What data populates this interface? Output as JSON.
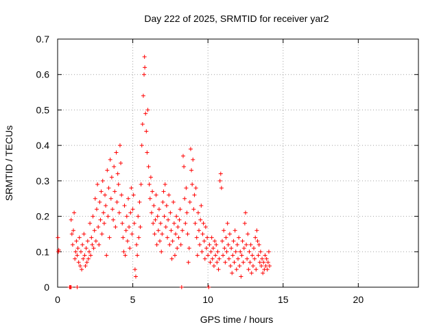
{
  "chart_data": {
    "type": "scatter",
    "title": "Day 222 of 2025, SRMTID for receiver yar2",
    "xlabel": "GPS time / hours",
    "ylabel": "SRMTID / TECUs",
    "xlim": [
      0,
      24
    ],
    "ylim": [
      0,
      0.7
    ],
    "xticks": [
      0,
      5,
      10,
      15,
      20
    ],
    "xtick_labels": [
      "0",
      "5",
      "10",
      "15",
      "20"
    ],
    "yticks": [
      0,
      0.1,
      0.2,
      0.3,
      0.4,
      0.5,
      0.6,
      0.7
    ],
    "ytick_labels": [
      "0",
      "0.1",
      "0.2",
      "0.3",
      "0.4",
      "0.5",
      "0.6",
      "0.7"
    ],
    "grid": true,
    "marker": "plus",
    "series": [
      {
        "name": "SRMTID",
        "color": "#ff0000",
        "points": [
          [
            0.02,
            0.14
          ],
          [
            0.05,
            0.1
          ],
          [
            0.08,
            0.105
          ],
          [
            0.8,
            0.0
          ],
          [
            0.85,
            0.0
          ],
          [
            0.9,
            0.0
          ],
          [
            1.3,
            0.0
          ],
          [
            0.9,
            0.19
          ],
          [
            0.95,
            0.15
          ],
          [
            1.0,
            0.12
          ],
          [
            1.05,
            0.16
          ],
          [
            1.1,
            0.21
          ],
          [
            1.15,
            0.08
          ],
          [
            1.2,
            0.1
          ],
          [
            1.25,
            0.13
          ],
          [
            1.3,
            0.09
          ],
          [
            1.35,
            0.11
          ],
          [
            1.4,
            0.07
          ],
          [
            1.45,
            0.14
          ],
          [
            1.5,
            0.06
          ],
          [
            1.55,
            0.1
          ],
          [
            1.6,
            0.05
          ],
          [
            1.65,
            0.12
          ],
          [
            1.7,
            0.08
          ],
          [
            1.75,
            0.15
          ],
          [
            1.8,
            0.09
          ],
          [
            1.85,
            0.06
          ],
          [
            1.9,
            0.11
          ],
          [
            1.95,
            0.07
          ],
          [
            2.0,
            0.13
          ],
          [
            2.05,
            0.08
          ],
          [
            2.1,
            0.1
          ],
          [
            2.15,
            0.18
          ],
          [
            2.2,
            0.09
          ],
          [
            2.25,
            0.14
          ],
          [
            2.3,
            0.12
          ],
          [
            2.35,
            0.2
          ],
          [
            2.4,
            0.11
          ],
          [
            2.45,
            0.16
          ],
          [
            2.5,
            0.25
          ],
          [
            2.55,
            0.13
          ],
          [
            2.6,
            0.22
          ],
          [
            2.65,
            0.29
          ],
          [
            2.7,
            0.17
          ],
          [
            2.75,
            0.12
          ],
          [
            2.8,
            0.24
          ],
          [
            2.85,
            0.19
          ],
          [
            2.9,
            0.27
          ],
          [
            2.95,
            0.15
          ],
          [
            3.0,
            0.3
          ],
          [
            3.05,
            0.21
          ],
          [
            3.1,
            0.18
          ],
          [
            3.15,
            0.26
          ],
          [
            3.2,
            0.23
          ],
          [
            3.25,
            0.09
          ],
          [
            3.3,
            0.33
          ],
          [
            3.35,
            0.2
          ],
          [
            3.4,
            0.28
          ],
          [
            3.45,
            0.14
          ],
          [
            3.5,
            0.36
          ],
          [
            3.55,
            0.25
          ],
          [
            3.6,
            0.31
          ],
          [
            3.65,
            0.22
          ],
          [
            3.7,
            0.19
          ],
          [
            3.75,
            0.34
          ],
          [
            3.8,
            0.27
          ],
          [
            3.85,
            0.17
          ],
          [
            3.9,
            0.38
          ],
          [
            3.95,
            0.24
          ],
          [
            4.0,
            0.32
          ],
          [
            4.05,
            0.29
          ],
          [
            4.1,
            0.21
          ],
          [
            4.15,
            0.4
          ],
          [
            4.2,
            0.35
          ],
          [
            4.25,
            0.26
          ],
          [
            4.3,
            0.18
          ],
          [
            4.35,
            0.14
          ],
          [
            4.4,
            0.1
          ],
          [
            4.45,
            0.23
          ],
          [
            4.5,
            0.09
          ],
          [
            4.55,
            0.16
          ],
          [
            4.6,
            0.2
          ],
          [
            4.65,
            0.13
          ],
          [
            4.7,
            0.25
          ],
          [
            4.75,
            0.17
          ],
          [
            4.8,
            0.11
          ],
          [
            4.85,
            0.21
          ],
          [
            4.9,
            0.28
          ],
          [
            4.95,
            0.15
          ],
          [
            5.0,
            0.22
          ],
          [
            5.05,
            0.26
          ],
          [
            5.1,
            0.18
          ],
          [
            5.15,
            0.05
          ],
          [
            5.2,
            0.03
          ],
          [
            5.25,
            0.12
          ],
          [
            5.3,
            0.09
          ],
          [
            5.35,
            0.2
          ],
          [
            5.4,
            0.14
          ],
          [
            5.45,
            0.24
          ],
          [
            5.5,
            0.17
          ],
          [
            5.55,
            0.29
          ],
          [
            5.6,
            0.4
          ],
          [
            5.65,
            0.46
          ],
          [
            5.7,
            0.54
          ],
          [
            5.75,
            0.6
          ],
          [
            5.78,
            0.65
          ],
          [
            5.8,
            0.62
          ],
          [
            5.85,
            0.49
          ],
          [
            5.9,
            0.44
          ],
          [
            5.95,
            0.38
          ],
          [
            6.0,
            0.5
          ],
          [
            6.05,
            0.34
          ],
          [
            6.1,
            0.29
          ],
          [
            6.15,
            0.25
          ],
          [
            6.2,
            0.31
          ],
          [
            6.25,
            0.21
          ],
          [
            6.3,
            0.27
          ],
          [
            6.35,
            0.18
          ],
          [
            6.4,
            0.23
          ],
          [
            6.45,
            0.15
          ],
          [
            6.5,
            0.19
          ],
          [
            6.55,
            0.26
          ],
          [
            6.6,
            0.12
          ],
          [
            6.65,
            0.2
          ],
          [
            6.7,
            0.16
          ],
          [
            6.75,
            0.22
          ],
          [
            6.8,
            0.13
          ],
          [
            6.85,
            0.18
          ],
          [
            6.9,
            0.1
          ],
          [
            6.95,
            0.15
          ],
          [
            7.0,
            0.24
          ],
          [
            7.05,
            0.27
          ],
          [
            7.1,
            0.2
          ],
          [
            7.15,
            0.29
          ],
          [
            7.2,
            0.17
          ],
          [
            7.25,
            0.23
          ],
          [
            7.3,
            0.14
          ],
          [
            7.35,
            0.19
          ],
          [
            7.4,
            0.26
          ],
          [
            7.45,
            0.12
          ],
          [
            7.5,
            0.21
          ],
          [
            7.55,
            0.16
          ],
          [
            7.6,
            0.08
          ],
          [
            7.65,
            0.13
          ],
          [
            7.7,
            0.24
          ],
          [
            7.75,
            0.18
          ],
          [
            7.8,
            0.09
          ],
          [
            7.85,
            0.15
          ],
          [
            7.9,
            0.2
          ],
          [
            7.95,
            0.11
          ],
          [
            8.0,
            0.17
          ],
          [
            8.05,
            0.14
          ],
          [
            8.1,
            0.19
          ],
          [
            8.15,
            0.22
          ],
          [
            8.2,
            0.12
          ],
          [
            8.25,
            0.0
          ],
          [
            8.3,
            0.16
          ],
          [
            8.35,
            0.37
          ],
          [
            8.4,
            0.34
          ],
          [
            8.45,
            0.25
          ],
          [
            8.5,
            0.18
          ],
          [
            8.55,
            0.28
          ],
          [
            8.6,
            0.21
          ],
          [
            8.65,
            0.15
          ],
          [
            8.7,
            0.07
          ],
          [
            8.75,
            0.11
          ],
          [
            8.8,
            0.24
          ],
          [
            8.85,
            0.39
          ],
          [
            8.9,
            0.33
          ],
          [
            8.95,
            0.29
          ],
          [
            9.0,
            0.36
          ],
          [
            9.05,
            0.22
          ],
          [
            9.1,
            0.26
          ],
          [
            9.15,
            0.18
          ],
          [
            9.2,
            0.28
          ],
          [
            9.25,
            0.14
          ],
          [
            9.3,
            0.09
          ],
          [
            9.35,
            0.21
          ],
          [
            9.4,
            0.16
          ],
          [
            9.45,
            0.12
          ],
          [
            9.5,
            0.19
          ],
          [
            9.55,
            0.23
          ],
          [
            9.6,
            0.1
          ],
          [
            9.65,
            0.15
          ],
          [
            9.7,
            0.18
          ],
          [
            9.75,
            0.13
          ],
          [
            9.8,
            0.08
          ],
          [
            9.85,
            0.17
          ],
          [
            9.9,
            0.11
          ],
          [
            9.95,
            0.14
          ],
          [
            10.0,
            0.09
          ],
          [
            10.05,
            0.0
          ],
          [
            10.1,
            0.12
          ],
          [
            10.15,
            0.07
          ],
          [
            10.2,
            0.1
          ],
          [
            10.25,
            0.14
          ],
          [
            10.3,
            0.08
          ],
          [
            10.35,
            0.11
          ],
          [
            10.4,
            0.06
          ],
          [
            10.45,
            0.13
          ],
          [
            10.5,
            0.09
          ],
          [
            10.55,
            0.12
          ],
          [
            10.6,
            0.07
          ],
          [
            10.65,
            0.1
          ],
          [
            10.7,
            0.05
          ],
          [
            10.75,
            0.08
          ],
          [
            10.8,
            0.3
          ],
          [
            10.85,
            0.32
          ],
          [
            10.9,
            0.28
          ],
          [
            10.95,
            0.13
          ],
          [
            11.0,
            0.09
          ],
          [
            11.05,
            0.16
          ],
          [
            11.1,
            0.11
          ],
          [
            11.15,
            0.07
          ],
          [
            11.2,
            0.14
          ],
          [
            11.25,
            0.1
          ],
          [
            11.3,
            0.18
          ],
          [
            11.35,
            0.12
          ],
          [
            11.4,
            0.08
          ],
          [
            11.45,
            0.15
          ],
          [
            11.5,
            0.06
          ],
          [
            11.55,
            0.11
          ],
          [
            11.6,
            0.04
          ],
          [
            11.65,
            0.09
          ],
          [
            11.7,
            0.13
          ],
          [
            11.75,
            0.07
          ],
          [
            11.8,
            0.16
          ],
          [
            11.85,
            0.1
          ],
          [
            11.9,
            0.05
          ],
          [
            11.95,
            0.12
          ],
          [
            12.0,
            0.08
          ],
          [
            12.05,
            0.14
          ],
          [
            12.1,
            0.06
          ],
          [
            12.15,
            0.1
          ],
          [
            12.2,
            0.03
          ],
          [
            12.25,
            0.09
          ],
          [
            12.3,
            0.13
          ],
          [
            12.35,
            0.07
          ],
          [
            12.4,
            0.11
          ],
          [
            12.45,
            0.18
          ],
          [
            12.5,
            0.21
          ],
          [
            12.55,
            0.12
          ],
          [
            12.6,
            0.08
          ],
          [
            12.65,
            0.15
          ],
          [
            12.7,
            0.05
          ],
          [
            12.75,
            0.1
          ],
          [
            12.8,
            0.07
          ],
          [
            12.85,
            0.12
          ],
          [
            12.9,
            0.04
          ],
          [
            12.95,
            0.09
          ],
          [
            13.0,
            0.06
          ],
          [
            13.05,
            0.11
          ],
          [
            13.1,
            0.08
          ],
          [
            13.15,
            0.14
          ],
          [
            13.2,
            0.05
          ],
          [
            13.25,
            0.16
          ],
          [
            13.3,
            0.13
          ],
          [
            13.35,
            0.09
          ],
          [
            13.4,
            0.12
          ],
          [
            13.45,
            0.07
          ],
          [
            13.5,
            0.1
          ],
          [
            13.55,
            0.06
          ],
          [
            13.6,
            0.08
          ],
          [
            13.65,
            0.04
          ],
          [
            13.7,
            0.07
          ],
          [
            13.75,
            0.05
          ],
          [
            13.8,
            0.09
          ],
          [
            13.85,
            0.06
          ],
          [
            13.9,
            0.08
          ],
          [
            13.95,
            0.05
          ],
          [
            14.0,
            0.07
          ],
          [
            14.05,
            0.1
          ],
          [
            14.1,
            0.06
          ]
        ]
      }
    ]
  }
}
